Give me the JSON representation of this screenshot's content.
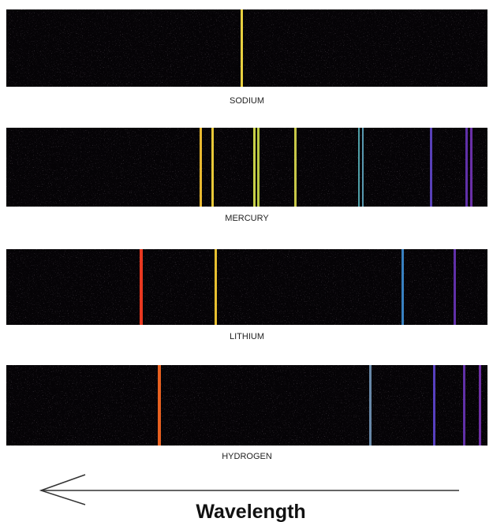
{
  "spectra": [
    {
      "label": "SODIUM"
    },
    {
      "label": "MERCURY"
    },
    {
      "label": "LITHIUM"
    },
    {
      "label": "HYDROGEN"
    }
  ],
  "axis_label": "Wavelength"
}
